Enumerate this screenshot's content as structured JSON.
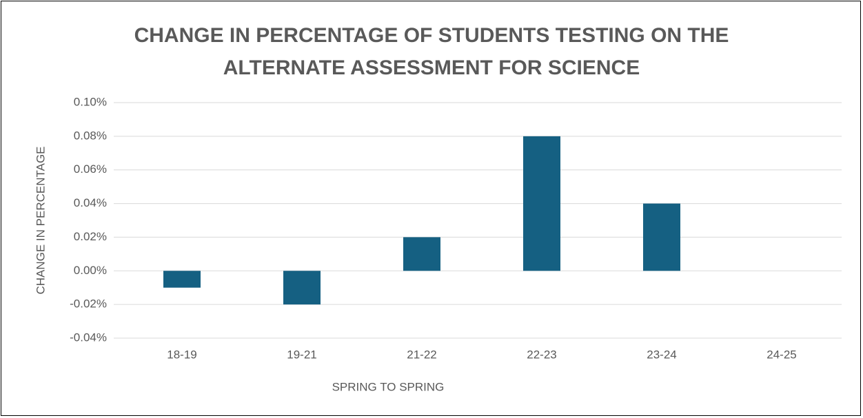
{
  "chart_data": {
    "type": "bar",
    "title": "CHANGE IN PERCENTAGE OF STUDENTS TESTING ON THE ALTERNATE ASSESSMENT FOR SCIENCE",
    "x_label": "SPRING TO SPRING",
    "y_label": "CHANGE IN PERCENTAGE",
    "categories": [
      "18-19",
      "19-21",
      "21-22",
      "22-23",
      "23-24",
      "24-25"
    ],
    "values": [
      -0.01,
      -0.02,
      0.02,
      0.08,
      0.04,
      0
    ],
    "color": "#156082",
    "ylim": [
      -0.04,
      0.1
    ],
    "yticks": [
      {
        "value": -0.04,
        "label": "-0.04%"
      },
      {
        "value": -0.02,
        "label": "-0.02%"
      },
      {
        "value": 0,
        "label": "0.00%"
      },
      {
        "value": 0.02,
        "label": "0.02%"
      },
      {
        "value": 0.04,
        "label": "0.04%"
      },
      {
        "value": 0.06,
        "label": "0.06%"
      },
      {
        "value": 0.08,
        "label": "0.08%"
      },
      {
        "value": 0.1,
        "label": "0.10%"
      }
    ],
    "grid": true
  }
}
